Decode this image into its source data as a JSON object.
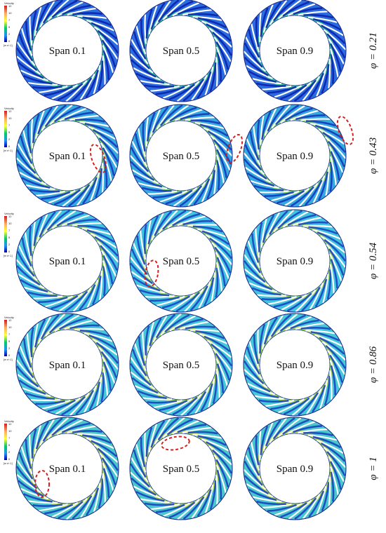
{
  "figure": {
    "colorbar": {
      "title": "Velocity",
      "ticks": [
        "12",
        "10",
        "7",
        "5",
        "2",
        "0"
      ],
      "unit": "[m s^-1]",
      "colors": [
        "#d7191c",
        "#fdae61",
        "#ffff33",
        "#00cc66",
        "#1e90ff",
        "#0000b0"
      ]
    },
    "rows": [
      {
        "phi": "φ = 0.21",
        "spans": [
          "Span 0.1",
          "Span 0.5",
          "Span 0.9"
        ],
        "fill": "#2b6de0",
        "stream": "#0a1ea8",
        "inner": "#3fd18a"
      },
      {
        "phi": "φ = 0.43",
        "spans": [
          "Span 0.1",
          "Span 0.5",
          "Span 0.9"
        ],
        "fill": "#36a9e0",
        "stream": "#1432b8",
        "inner": "#8ee05a"
      },
      {
        "phi": "φ = 0.54",
        "spans": [
          "Span 0.1",
          "Span 0.5",
          "Span 0.9"
        ],
        "fill": "#40c4e0",
        "stream": "#1a3cc0",
        "inner": "#a8e04a"
      },
      {
        "phi": "φ = 0.86",
        "spans": [
          "Span 0.1",
          "Span 0.5",
          "Span 0.9"
        ],
        "fill": "#45c8d8",
        "stream": "#1a3cc0",
        "inner": "#b8e040"
      },
      {
        "phi": "φ = 1",
        "spans": [
          "Span 0.1",
          "Span 0.5",
          "Span 0.9"
        ],
        "fill": "#48c8cc",
        "stream": "#1838c0",
        "inner": "#c8e03a"
      }
    ],
    "highlights": [
      {
        "row": 1,
        "col": 0
      },
      {
        "row": 1,
        "col": 1
      },
      {
        "row": 1,
        "col": 2
      },
      {
        "row": 2,
        "col": 1
      },
      {
        "row": 4,
        "col": 0
      },
      {
        "row": 4,
        "col": 1
      }
    ],
    "highlight_color": "#d61f1f"
  }
}
